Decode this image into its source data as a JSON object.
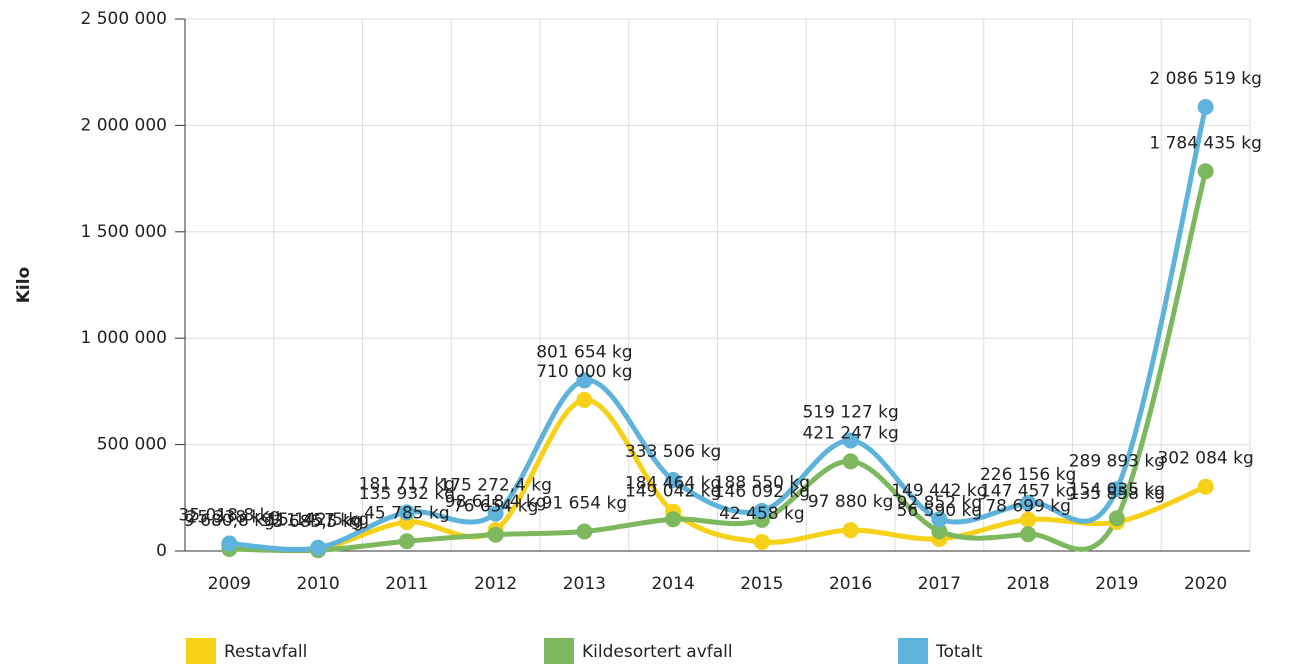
{
  "chart_data": {
    "type": "line",
    "y_label": "Kilo",
    "categories": [
      "2009",
      "2010",
      "2011",
      "2012",
      "2013",
      "2014",
      "2015",
      "2016",
      "2017",
      "2018",
      "2019",
      "2020"
    ],
    "ylim": [
      0,
      2500000
    ],
    "yticks": [
      0,
      {
        "value": 500000,
        "label": "500 000"
      },
      {
        "value": 1000000,
        "label": "1 000 000"
      },
      {
        "value": 1500000,
        "label": "1 500 000"
      },
      {
        "value": 2000000,
        "label": "2 000 000"
      },
      {
        "value": 2500000,
        "label": "2 500 000"
      }
    ],
    "grid": true,
    "smooth": true,
    "legend": "bottom",
    "series": [
      {
        "name": "Restavfall",
        "color": "#f7d117",
        "values": [
          25338,
          11457,
          135932,
          98618.4,
          710000,
          184464,
          42458,
          97880,
          56590,
          147457,
          135858,
          302084
        ],
        "value_labels": [
          "25 338 kg",
          "11 457 kg",
          "135 932 kg",
          "98 618,4 kg",
          "710 000 kg",
          "184 464 kg",
          "42 458 kg",
          "97 880 kg",
          "56 590 kg",
          "147 457 kg",
          "135 858 kg",
          "302 084 kg"
        ]
      },
      {
        "name": "Kildesortert avfall",
        "color": "#7db75e",
        "values": [
          9680.8,
          3685.5,
          45785,
          76654,
          91654,
          149042,
          146092,
          421247,
          92852,
          78699,
          154035,
          1784435
        ],
        "value_labels": [
          "9 680,8 kg",
          "3 685,5 kg",
          "45 785 kg",
          "76 654 kg",
          "91 654 kg",
          "149 042 kg",
          "146 092 kg",
          "421 247 kg",
          "92 852 kg",
          "78 699 kg",
          "154 035 kg",
          "1 784 435 kg"
        ]
      },
      {
        "name": "Totalt",
        "color": "#5eb3dc",
        "values": [
          35018.8,
          15142.5,
          181717,
          175272.4,
          801654,
          333506,
          188550,
          519127,
          149442,
          226156,
          289893,
          2086519
        ],
        "value_labels": [
          "35 018,8 kg",
          "15 142,5 kg",
          "181 717 kg",
          "175 272,4 kg",
          "801 654 kg",
          "333 506 kg",
          "188 550 kg",
          "519 127 kg",
          "149 442 kg",
          "226 156 kg",
          "289 893 kg",
          "2 086 519 kg"
        ]
      }
    ]
  }
}
